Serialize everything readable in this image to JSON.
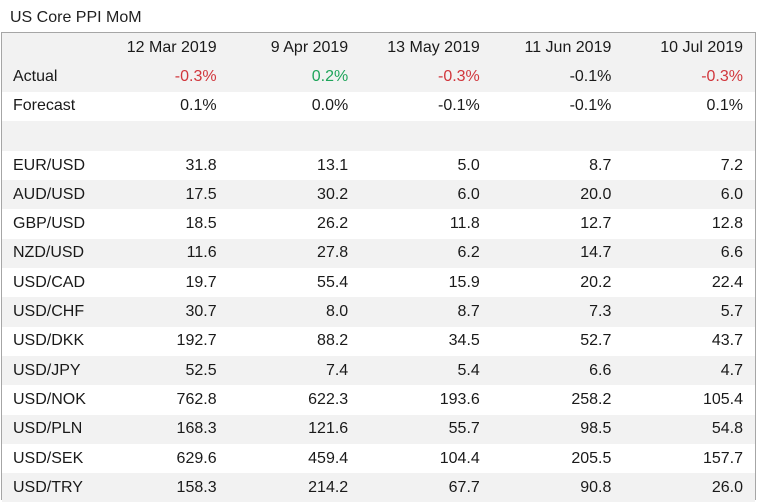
{
  "chart_data": {
    "type": "table",
    "title": "US Core PPI MoM",
    "columns": [
      "12 Mar 2019",
      "9 Apr 2019",
      "13 May 2019",
      "11 Jun 2019",
      "10 Jul 2019"
    ],
    "event_rows": [
      {
        "label": "Actual",
        "values": [
          "-0.3%",
          "0.2%",
          "-0.3%",
          "-0.1%",
          "-0.3%"
        ],
        "colors": [
          "#d1363c",
          "#1fa55b",
          "#d1363c",
          "#1a1a1a",
          "#d1363c"
        ]
      },
      {
        "label": "Forecast",
        "values": [
          "0.1%",
          "0.0%",
          "-0.1%",
          "-0.1%",
          "0.1%"
        ]
      }
    ],
    "pair_rows": [
      {
        "label": "EUR/USD",
        "values": [
          "31.8",
          "13.1",
          "5.0",
          "8.7",
          "7.2"
        ]
      },
      {
        "label": "AUD/USD",
        "values": [
          "17.5",
          "30.2",
          "6.0",
          "20.0",
          "6.0"
        ]
      },
      {
        "label": "GBP/USD",
        "values": [
          "18.5",
          "26.2",
          "11.8",
          "12.7",
          "12.8"
        ]
      },
      {
        "label": "NZD/USD",
        "values": [
          "11.6",
          "27.8",
          "6.2",
          "14.7",
          "6.6"
        ]
      },
      {
        "label": "USD/CAD",
        "values": [
          "19.7",
          "55.4",
          "15.9",
          "20.2",
          "22.4"
        ]
      },
      {
        "label": "USD/CHF",
        "values": [
          "30.7",
          "8.0",
          "8.7",
          "7.3",
          "5.7"
        ]
      },
      {
        "label": "USD/DKK",
        "values": [
          "192.7",
          "88.2",
          "34.5",
          "52.7",
          "43.7"
        ]
      },
      {
        "label": "USD/JPY",
        "values": [
          "52.5",
          "7.4",
          "5.4",
          "6.6",
          "4.7"
        ]
      },
      {
        "label": "USD/NOK",
        "values": [
          "762.8",
          "622.3",
          "193.6",
          "258.2",
          "105.4"
        ]
      },
      {
        "label": "USD/PLN",
        "values": [
          "168.3",
          "121.6",
          "55.7",
          "98.5",
          "54.8"
        ]
      },
      {
        "label": "USD/SEK",
        "values": [
          "629.6",
          "459.4",
          "104.4",
          "205.5",
          "157.7"
        ]
      },
      {
        "label": "USD/TRY",
        "values": [
          "158.3",
          "214.2",
          "67.7",
          "90.8",
          "26.0"
        ]
      }
    ]
  }
}
